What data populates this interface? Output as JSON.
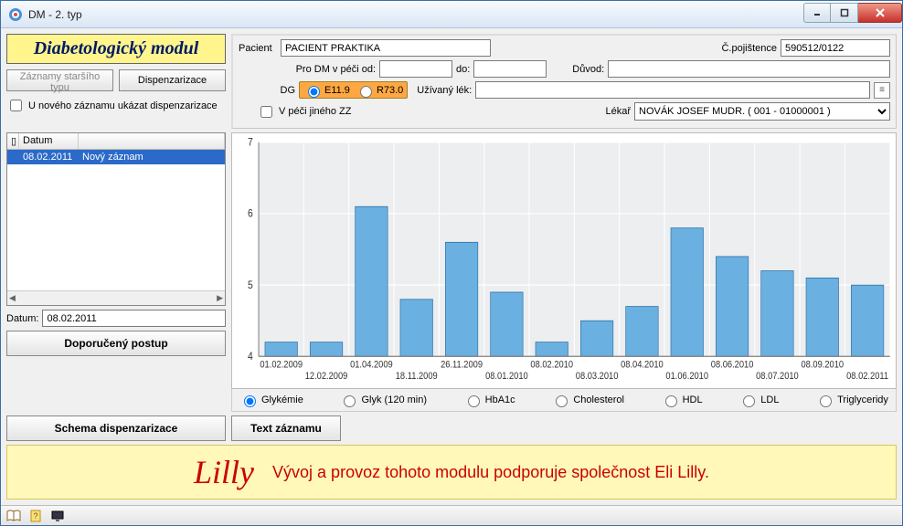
{
  "window": {
    "title": "DM - 2. typ"
  },
  "module": {
    "title": "Diabetologický modul"
  },
  "buttons": {
    "old_records": "Záznamy staršího typu",
    "dispenzarizace": "Dispenzarizace",
    "recommended": "Doporučený postup",
    "schema": "Schema dispenzarizace",
    "text_record": "Text záznamu"
  },
  "checkboxes": {
    "show_disp": "U nového záznamu ukázat dispenzarizace",
    "other_care": "V péči jiného ZZ"
  },
  "form": {
    "patient_label": "Pacient",
    "patient_value": "PACIENT PRAKTIKA",
    "ins_label": "Č.pojištence",
    "ins_value": "590512/0122",
    "care_from_label": "Pro DM v péči od:",
    "care_from_value": "",
    "care_to_label": "do:",
    "care_to_value": "",
    "reason_label": "Důvod:",
    "reason_value": "",
    "dg_label": "DG",
    "dg_opt1": "E11.9",
    "dg_opt2": "R73.0",
    "med_label": "Užívaný lék:",
    "med_value": "",
    "doctor_label": "Lékař",
    "doctor_value": "NOVÁK JOSEF MUDR. ( 001 - 01000001 )"
  },
  "list": {
    "col_date": "Datum",
    "row_date": "08.02.2011",
    "row_text": "Nový záznam"
  },
  "datum": {
    "label": "Datum:",
    "value": "08.02.2011"
  },
  "chart": {
    "type": "bar",
    "ylim": [
      4,
      7
    ],
    "yticks": [
      4,
      5,
      6,
      7
    ],
    "categories": [
      "01.02.2009",
      "12.02.2009",
      "01.04.2009",
      "18.11.2009",
      "26.11.2009",
      "08.01.2010",
      "08.02.2010",
      "08.03.2010",
      "08.04.2010",
      "01.06.2010",
      "08.06.2010",
      "08.07.2010",
      "08.09.2010",
      "08.02.2011"
    ],
    "values": [
      4.2,
      4.2,
      6.1,
      4.8,
      5.6,
      4.9,
      4.2,
      4.5,
      4.7,
      5.8,
      5.4,
      5.2,
      5.1,
      5.0
    ],
    "bar_fill": "#6ab0e0",
    "bar_stroke": "#2a6aa0",
    "bg": "#eceef0",
    "grid": "#ffffff",
    "axis_color": "#808080",
    "label_fontsize": 9,
    "tick_fontsize": 10
  },
  "series_radios": {
    "glykemie": "Glykémie",
    "glyk120": "Glyk (120 min)",
    "hba1c": "HbA1c",
    "cholesterol": "Cholesterol",
    "hdl": "HDL",
    "ldl": "LDL",
    "triglyceridy": "Triglyceridy"
  },
  "sponsor": {
    "logo": "Lilly",
    "text": "Vývoj a provoz tohoto modulu podporuje společnost Eli Lilly."
  }
}
